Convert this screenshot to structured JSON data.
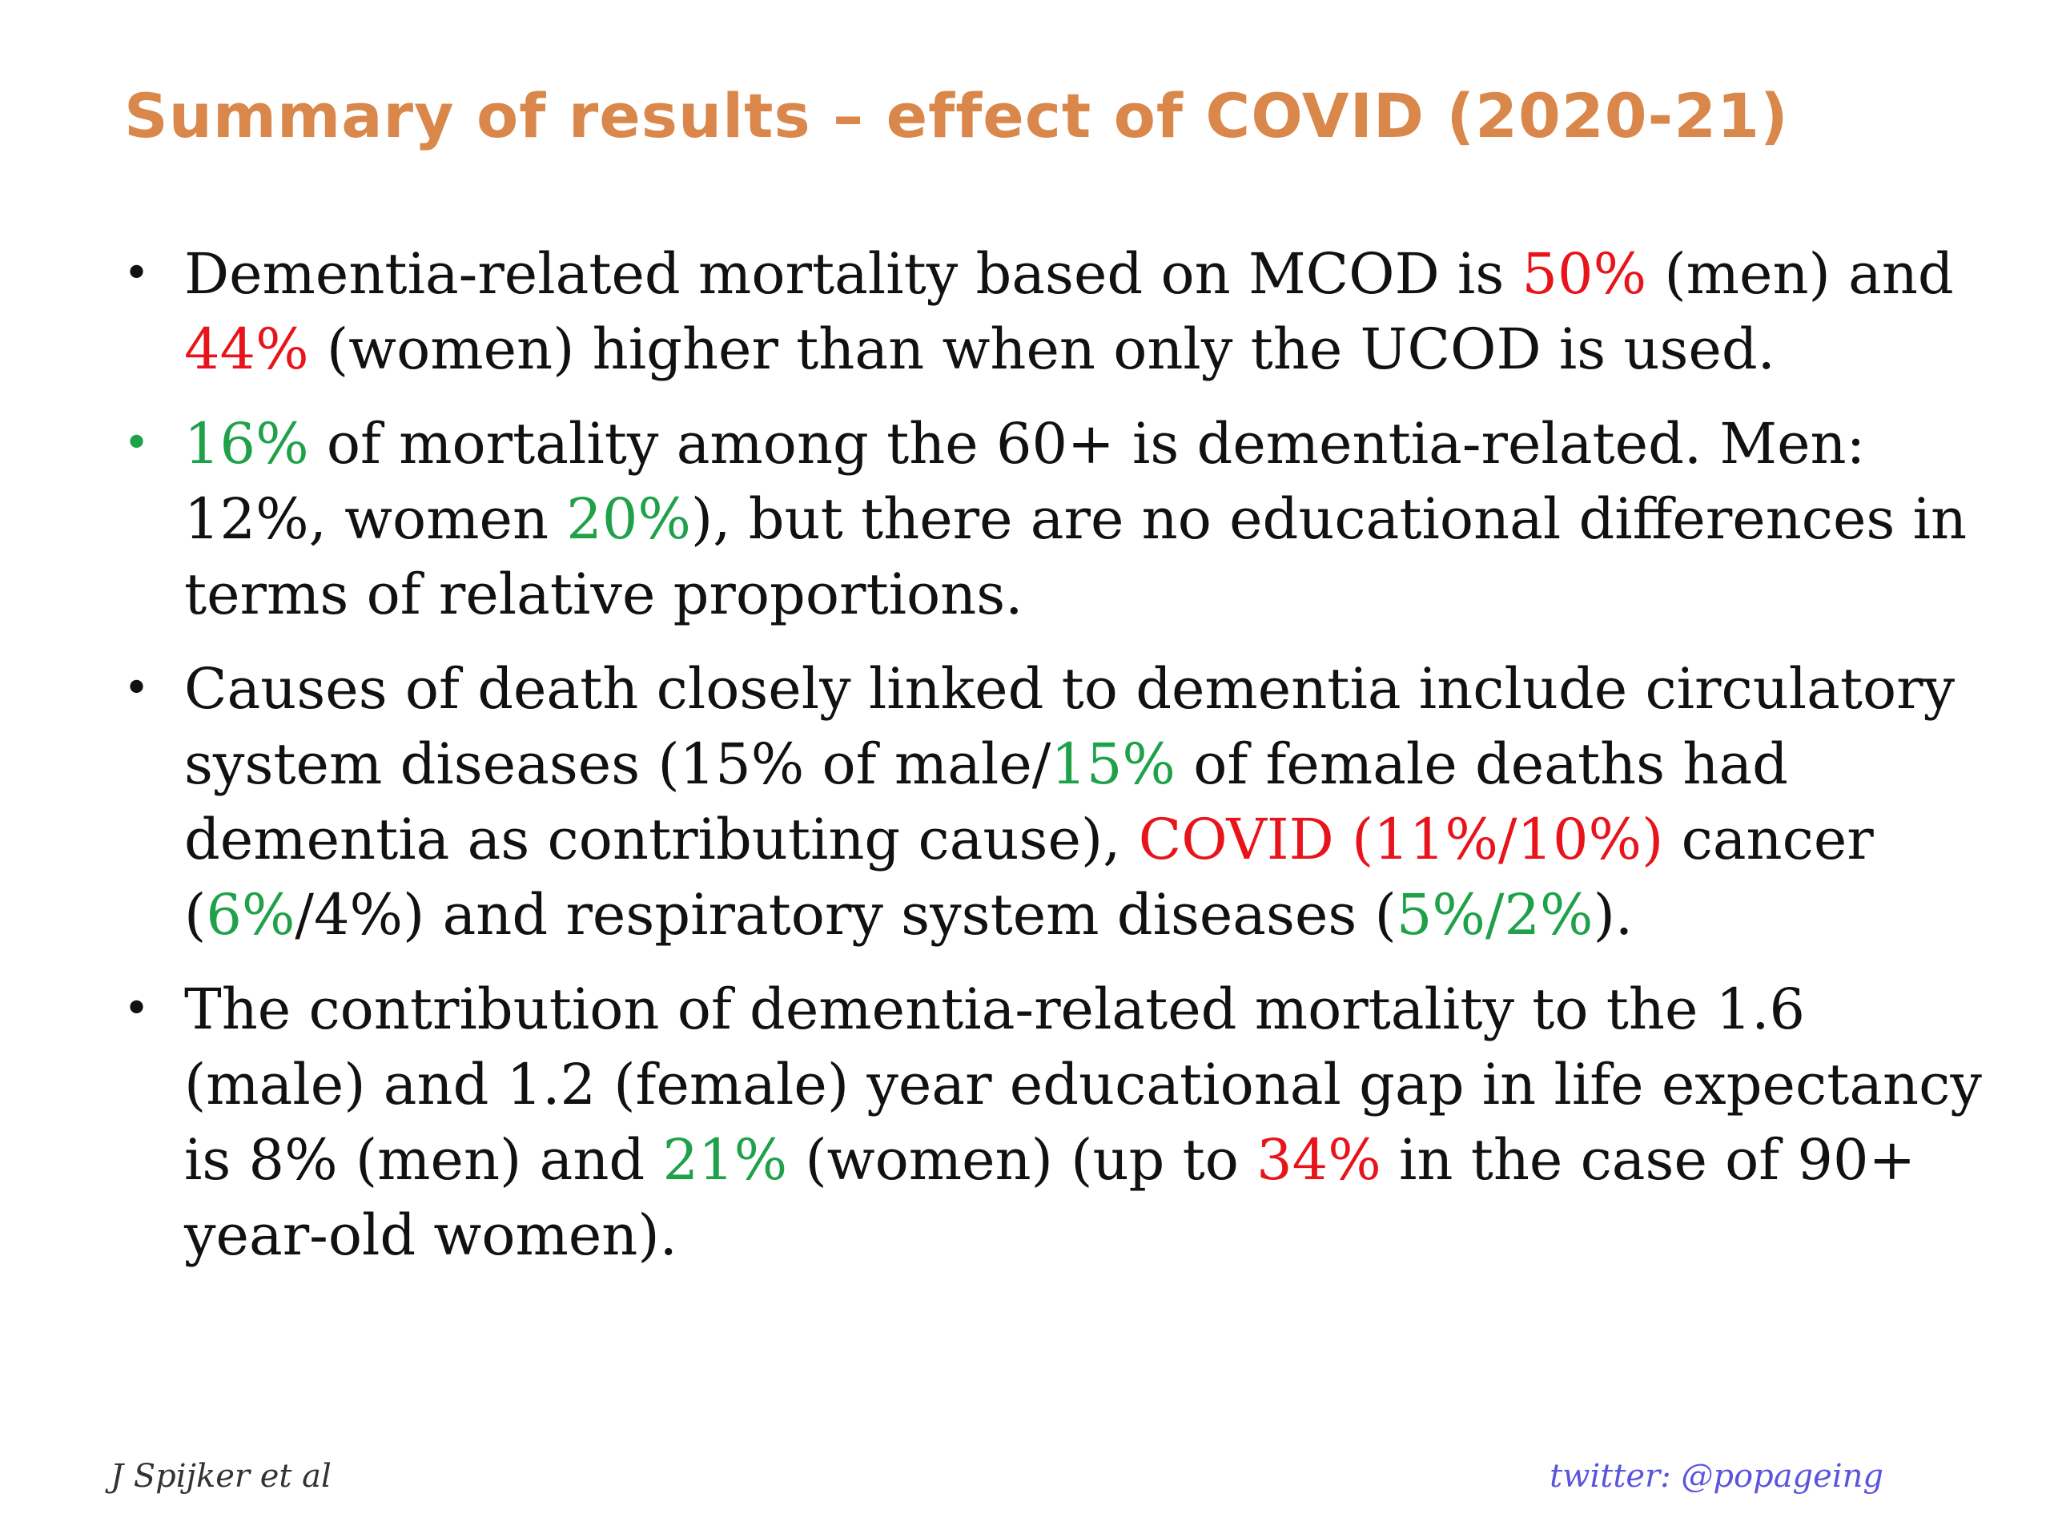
{
  "title": "Summary of results – effect of COVID (2020-21)",
  "colors": {
    "title": "#d9874a",
    "highlight_red": "#e8141b",
    "highlight_green": "#1fa14a",
    "twitter": "#5a55dd"
  },
  "bullet_marker": "•",
  "bullets": [
    {
      "marker_color": "default",
      "segments": [
        {
          "text": "Dementia-related mortality based on MCOD is ",
          "color": "default"
        },
        {
          "text": "50%",
          "color": "red"
        },
        {
          "text": " (men) and ",
          "color": "default"
        },
        {
          "text": "44%",
          "color": "red"
        },
        {
          "text": " (women) higher than when only the UCOD is used.",
          "color": "default"
        }
      ]
    },
    {
      "marker_color": "green",
      "segments": [
        {
          "text": "16%",
          "color": "green"
        },
        {
          "text": " of mortality among the 60+ is dementia-related. Men: 12%, women ",
          "color": "default"
        },
        {
          "text": "20%",
          "color": "green"
        },
        {
          "text": "), but there are no educational differences in terms of relative proportions.",
          "color": "default"
        }
      ]
    },
    {
      "marker_color": "default",
      "segments": [
        {
          "text": "Causes of death closely linked to dementia include circulatory system diseases (15% of male/",
          "color": "default"
        },
        {
          "text": "15%",
          "color": "green"
        },
        {
          "text": " of female deaths had dementia as contributing cause), ",
          "color": "default"
        },
        {
          "text": "COVID (11%/10%)",
          "color": "red"
        },
        {
          "text": " cancer (",
          "color": "default"
        },
        {
          "text": "6%",
          "color": "green"
        },
        {
          "text": "/4%) and respiratory system diseases (",
          "color": "default"
        },
        {
          "text": "5%/2%",
          "color": "green"
        },
        {
          "text": ").",
          "color": "default"
        }
      ]
    },
    {
      "marker_color": "default",
      "segments": [
        {
          "text": "The contribution of dementia-related mortality to the 1.6 (male) and 1.2 (female) year educational gap in life expectancy is 8% (men) and ",
          "color": "default"
        },
        {
          "text": "21%",
          "color": "green"
        },
        {
          "text": " (women) (up to ",
          "color": "default"
        },
        {
          "text": "34%",
          "color": "red"
        },
        {
          "text": " in the case of 90+ year-old women).",
          "color": "default"
        }
      ]
    }
  ],
  "footer": {
    "author": "J Spijker et al",
    "twitter": "twitter: @popageing"
  }
}
